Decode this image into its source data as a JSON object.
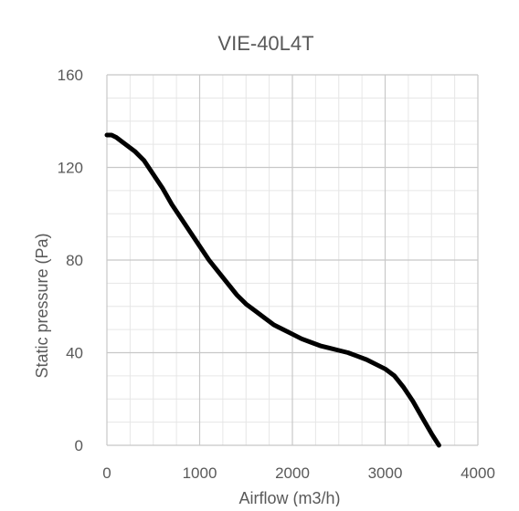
{
  "chart_data": {
    "type": "line",
    "title": "VIE-40L4T",
    "xlabel": "Airflow (m3/h)",
    "ylabel": "Static pressure (Pa)",
    "xlim": [
      0,
      4000
    ],
    "ylim": [
      0,
      160
    ],
    "x_ticks": [
      "0",
      "1000",
      "2000",
      "3000",
      "4000"
    ],
    "y_ticks": [
      "0",
      "40",
      "80",
      "120",
      "160"
    ],
    "grid": true,
    "legend": "none",
    "series": [
      {
        "color": "#000000",
        "x": [
          0,
          50,
          100,
          200,
          300,
          400,
          500,
          600,
          700,
          800,
          900,
          1000,
          1100,
          1200,
          1300,
          1400,
          1500,
          1600,
          1700,
          1800,
          1900,
          2000,
          2100,
          2200,
          2300,
          2400,
          2500,
          2600,
          2700,
          2800,
          2900,
          3000,
          3100,
          3200,
          3300,
          3400,
          3500,
          3580
        ],
        "y": [
          134,
          134,
          133,
          130,
          127,
          123,
          117,
          111,
          104,
          98,
          92,
          86,
          80,
          75,
          70,
          65,
          61,
          58,
          55,
          52,
          50,
          48,
          46,
          44.5,
          43,
          42,
          41,
          40,
          38.5,
          37,
          35,
          33,
          30,
          25,
          19,
          12,
          5,
          0
        ]
      }
    ]
  }
}
